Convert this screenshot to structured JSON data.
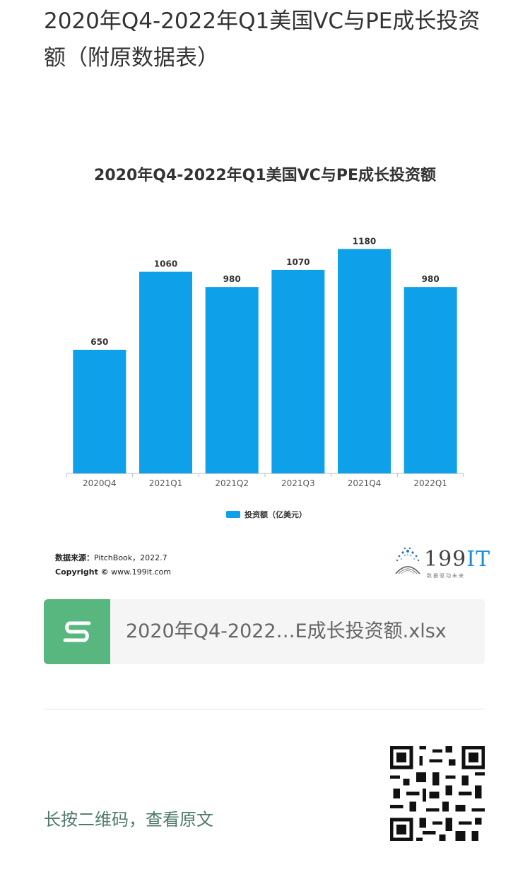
{
  "article": {
    "title": "2020年Q4-2022年Q1美国VC与PE成长投资额（附原数据表）"
  },
  "chart_data": {
    "type": "bar",
    "title": "2020年Q4-2022年Q1美国VC与PE成长投资额",
    "categories": [
      "2020Q4",
      "2021Q1",
      "2021Q2",
      "2021Q3",
      "2021Q4",
      "2022Q1"
    ],
    "series": [
      {
        "name": "投资额（亿美元）",
        "values": [
          650,
          1060,
          980,
          1070,
          1180,
          980
        ],
        "color": "#0ea0e8"
      }
    ],
    "ylim": [
      0,
      1300
    ],
    "grid": false,
    "legend": "bottom",
    "data_labels": true
  },
  "source": {
    "label": "数据来源：",
    "text": "PitchBook，2022.7",
    "copyright_label": "Copyright ©",
    "copyright_text": "www.199it.com"
  },
  "brand": {
    "name_num": "199",
    "name_it": "IT",
    "tagline": "数据驱动未来"
  },
  "attachment": {
    "file_name": "2020年Q4-2022…E成长投资额.xlsx",
    "icon": "spreadsheet-s-icon",
    "icon_color": "#58b77f"
  },
  "footer": {
    "qr_hint": "长按二维码，查看原文"
  }
}
